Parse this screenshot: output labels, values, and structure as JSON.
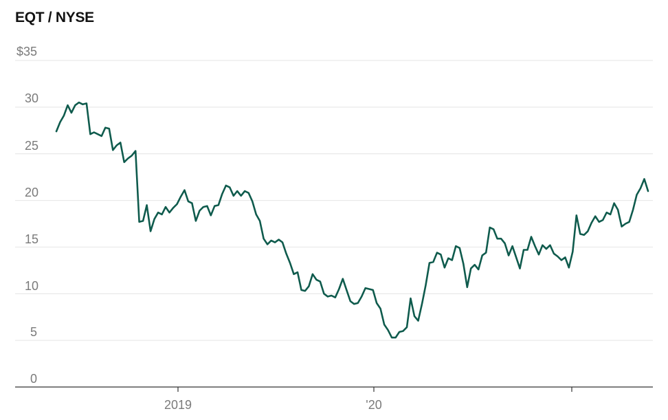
{
  "chart_data": {
    "type": "line",
    "title": "EQT / NYSE",
    "xlabel": "",
    "ylabel": "",
    "y_tick_labels": [
      "$35",
      "30",
      "25",
      "20",
      "15",
      "10",
      "5",
      "0"
    ],
    "x_tick_labels": [
      "2019",
      "'20",
      ""
    ],
    "ylim": [
      0,
      35
    ],
    "grid": true,
    "line_color": "#0f5b4d",
    "series": [
      {
        "values": [
          27.4,
          28.4,
          29.1,
          30.2,
          29.4,
          30.2,
          30.5,
          30.3,
          30.4,
          27.1,
          27.3,
          27.1,
          26.9,
          27.8,
          27.7,
          25.4,
          25.9,
          26.2,
          24.1,
          24.5,
          24.8,
          25.3,
          17.7,
          17.8,
          19.5,
          16.7,
          18.0,
          18.7,
          18.5,
          19.3,
          18.7,
          19.2,
          19.6,
          20.4,
          21.1,
          19.9,
          19.7,
          17.8,
          18.9,
          19.3,
          19.4,
          18.4,
          19.4,
          19.5,
          20.7,
          21.6,
          21.4,
          20.5,
          21.0,
          20.5,
          21.0,
          20.8,
          19.9,
          18.5,
          17.8,
          15.9,
          15.3,
          15.7,
          15.5,
          15.8,
          15.5,
          14.3,
          13.3,
          12.1,
          12.3,
          10.4,
          10.3,
          10.8,
          12.1,
          11.5,
          11.3,
          10.0,
          9.7,
          9.8,
          9.6,
          10.5,
          11.6,
          10.4,
          9.2,
          8.9,
          9.0,
          9.7,
          10.6,
          10.5,
          10.4,
          9.0,
          8.4,
          6.7,
          6.1,
          5.3,
          5.3,
          5.9,
          6.0,
          6.4,
          9.5,
          7.6,
          7.1,
          8.9,
          10.9,
          13.3,
          13.4,
          14.4,
          14.2,
          12.8,
          13.8,
          13.6,
          15.1,
          14.9,
          13.2,
          10.7,
          12.7,
          13.1,
          12.6,
          14.1,
          14.4,
          17.1,
          16.9,
          15.9,
          15.9,
          15.4,
          14.1,
          15.1,
          13.9,
          12.7,
          14.7,
          14.7,
          16.1,
          15.1,
          14.2,
          15.2,
          14.8,
          15.2,
          14.3,
          14.0,
          13.6,
          13.9,
          12.8,
          14.5,
          18.4,
          16.4,
          16.3,
          16.7,
          17.6,
          18.3,
          17.7,
          17.9,
          18.7,
          18.5,
          19.7,
          19.0,
          17.2,
          17.5,
          17.7,
          19.0,
          20.6,
          21.3,
          22.3,
          21.0
        ]
      }
    ]
  }
}
